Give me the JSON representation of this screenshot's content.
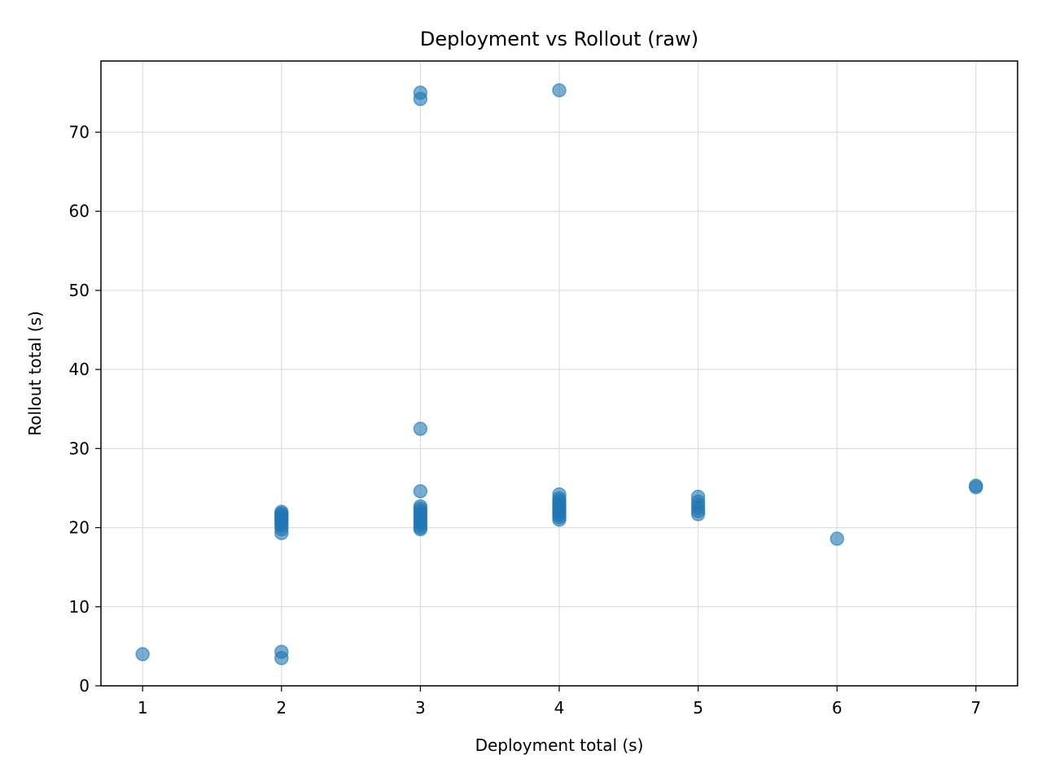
{
  "chart_data": {
    "type": "scatter",
    "title": "Deployment vs Rollout (raw)",
    "xlabel": "Deployment total (s)",
    "ylabel": "Rollout total (s)",
    "xlim": [
      0.7,
      7.3
    ],
    "ylim": [
      0,
      79
    ],
    "xticks": [
      1,
      2,
      3,
      4,
      5,
      6,
      7
    ],
    "yticks": [
      0,
      10,
      20,
      30,
      40,
      50,
      60,
      70
    ],
    "grid": true,
    "marker_color": "#1f77b4",
    "series": [
      {
        "points": [
          [
            1,
            4.0
          ],
          [
            2,
            3.5
          ],
          [
            2,
            4.3
          ],
          [
            2,
            19.3
          ],
          [
            2,
            19.8
          ],
          [
            2,
            20.2
          ],
          [
            2,
            20.5
          ],
          [
            2,
            20.8
          ],
          [
            2,
            21.0
          ],
          [
            2,
            21.2
          ],
          [
            2,
            21.4
          ],
          [
            2,
            21.6
          ],
          [
            2,
            21.8
          ],
          [
            2,
            22.0
          ],
          [
            3,
            19.8
          ],
          [
            3,
            20.0
          ],
          [
            3,
            20.3
          ],
          [
            3,
            20.6
          ],
          [
            3,
            20.9
          ],
          [
            3,
            21.2
          ],
          [
            3,
            21.5
          ],
          [
            3,
            21.8
          ],
          [
            3,
            22.1
          ],
          [
            3,
            22.4
          ],
          [
            3,
            22.7
          ],
          [
            3,
            24.6
          ],
          [
            3,
            32.5
          ],
          [
            3,
            74.2
          ],
          [
            3,
            75.0
          ],
          [
            4,
            21.0
          ],
          [
            4,
            21.3
          ],
          [
            4,
            21.6
          ],
          [
            4,
            21.9
          ],
          [
            4,
            22.2
          ],
          [
            4,
            22.5
          ],
          [
            4,
            22.8
          ],
          [
            4,
            23.1
          ],
          [
            4,
            23.4
          ],
          [
            4,
            23.7
          ],
          [
            4,
            24.2
          ],
          [
            4,
            75.3
          ],
          [
            5,
            21.7
          ],
          [
            5,
            22.1
          ],
          [
            5,
            22.5
          ],
          [
            5,
            22.9
          ],
          [
            5,
            23.3
          ],
          [
            5,
            23.9
          ],
          [
            6,
            18.6
          ],
          [
            7,
            25.1
          ],
          [
            7,
            25.3
          ]
        ]
      }
    ]
  }
}
